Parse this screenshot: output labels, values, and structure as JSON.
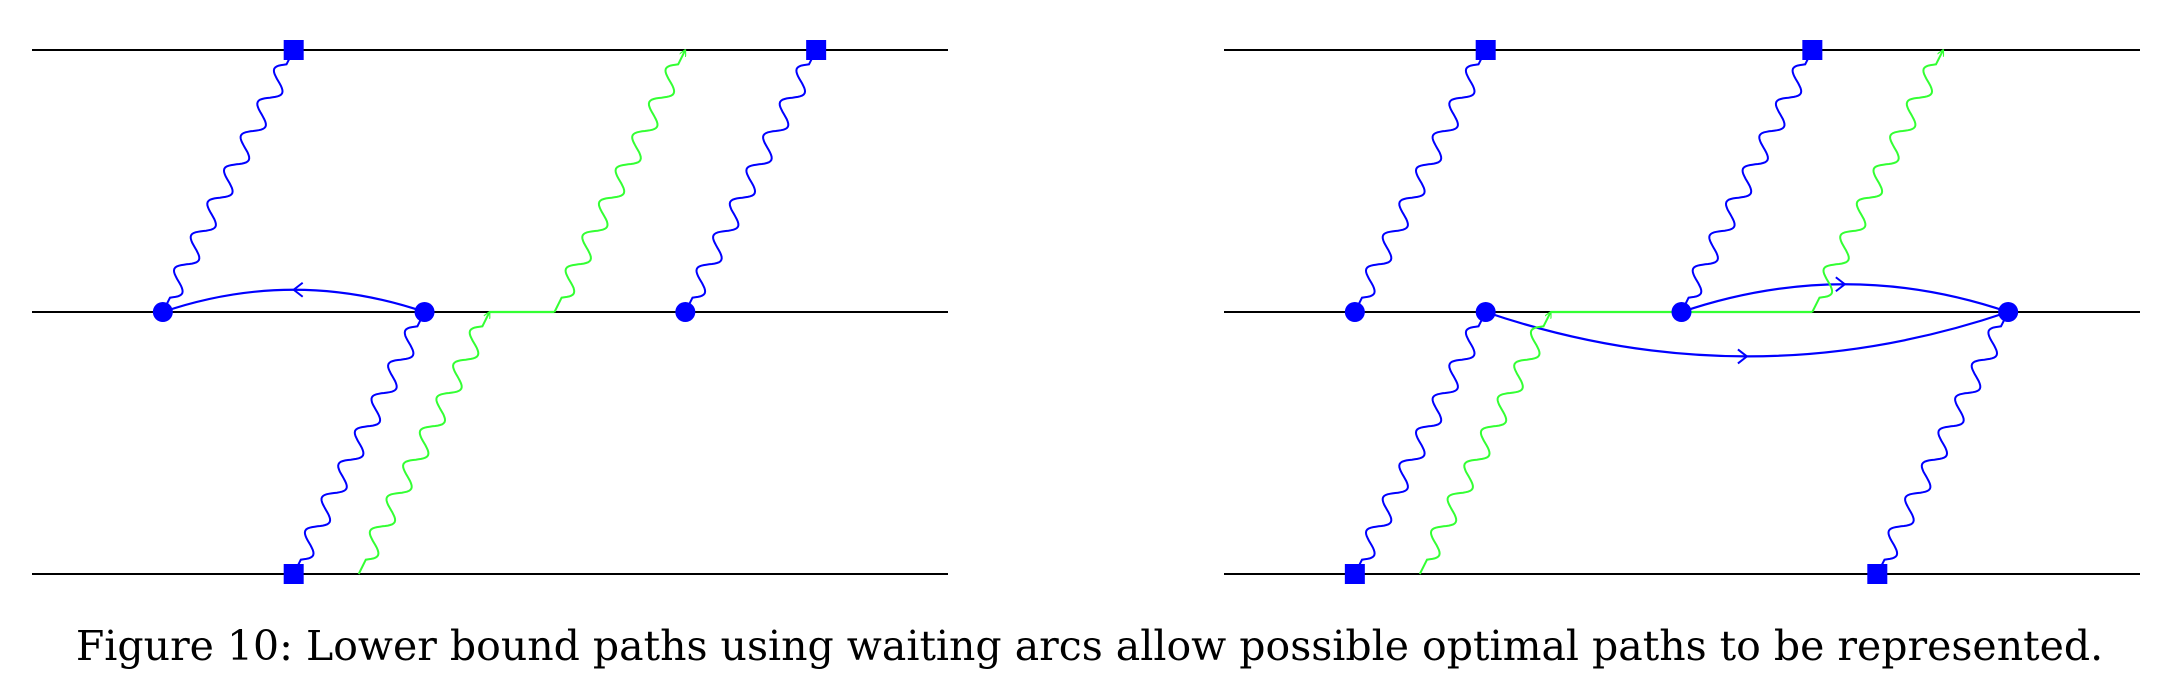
{
  "caption": "Figure 10: Lower bound paths using waiting arcs allow possible optimal paths to be represented.",
  "colors": {
    "line": "#000000",
    "primary": "#0000ff",
    "secondary": "#33ff33"
  },
  "panels": [
    {
      "id": "left",
      "levels": 3,
      "nodes": [
        {
          "shape": "square",
          "level": "top",
          "pos": 0.286
        },
        {
          "shape": "square",
          "level": "top",
          "pos": 0.857
        },
        {
          "shape": "square",
          "level": "bottom",
          "pos": 0.286
        },
        {
          "shape": "circle",
          "level": "middle",
          "pos": 0.143
        },
        {
          "shape": "circle",
          "level": "middle",
          "pos": 0.429
        },
        {
          "shape": "circle",
          "level": "middle",
          "pos": 0.714
        }
      ],
      "wavy_arrows": [
        {
          "color": "primary",
          "from": [
            "middle",
            0.143
          ],
          "to": [
            "top",
            0.286
          ]
        },
        {
          "color": "primary",
          "from": [
            "bottom",
            0.286
          ],
          "to": [
            "middle",
            0.429
          ]
        },
        {
          "color": "primary",
          "from": [
            "middle",
            0.714
          ],
          "to": [
            "top",
            0.857
          ]
        },
        {
          "color": "secondary",
          "from": [
            "bottom",
            0.357
          ],
          "to": [
            "middle",
            0.5
          ]
        },
        {
          "color": "secondary",
          "from": [
            "middle",
            0.571
          ],
          "to": [
            "top",
            0.714
          ]
        }
      ],
      "straight_segments": [
        {
          "color": "secondary",
          "level": "middle",
          "from": 0.5,
          "to": 0.571
        }
      ],
      "curved_arrows": [
        {
          "color": "primary",
          "from": 0.429,
          "to": 0.143,
          "bow": "up"
        }
      ]
    },
    {
      "id": "right",
      "levels": 3,
      "nodes": [
        {
          "shape": "square",
          "level": "top",
          "pos": 0.286
        },
        {
          "shape": "square",
          "level": "top",
          "pos": 0.643
        },
        {
          "shape": "square",
          "level": "bottom",
          "pos": 0.143
        },
        {
          "shape": "square",
          "level": "bottom",
          "pos": 0.714
        },
        {
          "shape": "circle",
          "level": "middle",
          "pos": 0.143
        },
        {
          "shape": "circle",
          "level": "middle",
          "pos": 0.286
        },
        {
          "shape": "circle",
          "level": "middle",
          "pos": 0.5
        },
        {
          "shape": "circle",
          "level": "middle",
          "pos": 0.857
        }
      ],
      "wavy_arrows": [
        {
          "color": "primary",
          "from": [
            "middle",
            0.143
          ],
          "to": [
            "top",
            0.286
          ]
        },
        {
          "color": "primary",
          "from": [
            "middle",
            0.5
          ],
          "to": [
            "top",
            0.643
          ]
        },
        {
          "color": "primary",
          "from": [
            "bottom",
            0.143
          ],
          "to": [
            "middle",
            0.286
          ]
        },
        {
          "color": "primary",
          "from": [
            "bottom",
            0.714
          ],
          "to": [
            "middle",
            0.857
          ]
        },
        {
          "color": "secondary",
          "from": [
            "bottom",
            0.214
          ],
          "to": [
            "middle",
            0.357
          ]
        },
        {
          "color": "secondary",
          "from": [
            "middle",
            0.643
          ],
          "to": [
            "top",
            0.786
          ]
        }
      ],
      "straight_segments": [
        {
          "color": "secondary",
          "level": "middle",
          "from": 0.357,
          "to": 0.643
        }
      ],
      "curved_arrows": [
        {
          "color": "primary",
          "from": 0.5,
          "to": 0.857,
          "bow": "up"
        },
        {
          "color": "primary",
          "from": 0.286,
          "to": 0.857,
          "bow": "down"
        }
      ]
    }
  ]
}
